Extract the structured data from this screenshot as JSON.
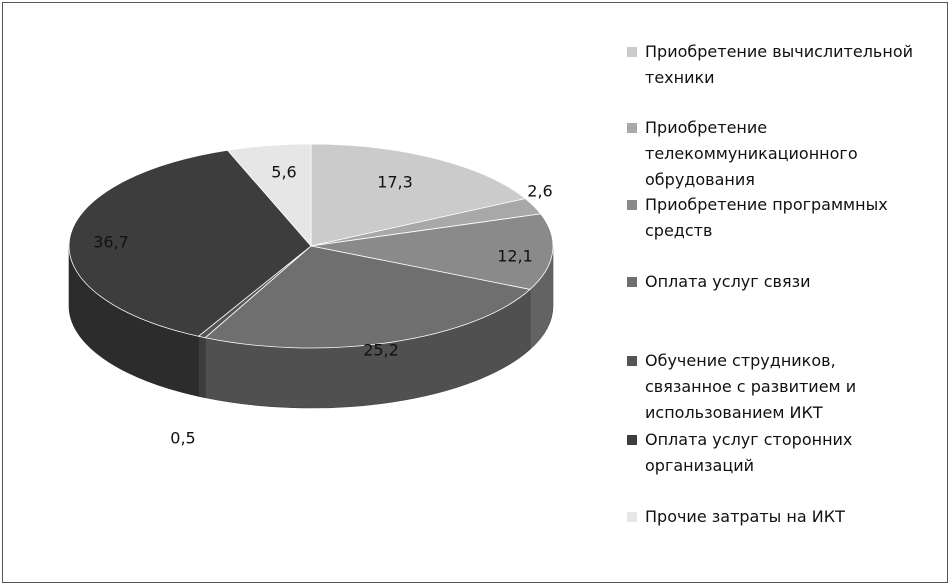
{
  "chart_data": {
    "type": "pie",
    "three_d": true,
    "categories": [
      "Приобретение вычислительной техники",
      "Приобретение телекоммуникационного обрудования",
      "Приобретение программных средств",
      "Оплата услуг связи",
      "Обучение струдников, связанное с развитием и использованием ИКТ",
      "Оплата услуг сторонних организаций",
      "Прочие затраты на ИКТ"
    ],
    "values": [
      17.3,
      2.6,
      12.1,
      25.2,
      0.5,
      36.7,
      5.6
    ],
    "data_labels": [
      "17,3",
      "2,6",
      "12,1",
      "25,2",
      "0,5",
      "36,7",
      "5,6"
    ],
    "colors": [
      "#cbcbcb",
      "#a8a8a8",
      "#8a8a8a",
      "#6f6f6f",
      "#555555",
      "#3d3d3d",
      "#e6e6e6"
    ],
    "legend_position": "right",
    "title": ""
  },
  "legend": {
    "items": [
      {
        "label": "Приобретение вычислительной\nтехники"
      },
      {
        "label": "Приобретение\nтелекоммуникационного\nобрудования"
      },
      {
        "label": "Приобретение программных\nсредств"
      },
      {
        "label": "Оплата услуг связи"
      },
      {
        "label": "Обучение струдников,\nсвязанное с развитием и\nиспользованием ИКТ"
      },
      {
        "label": "Оплата услуг сторонних\nорганизаций"
      },
      {
        "label": "Прочие затраты на ИКТ"
      }
    ]
  }
}
